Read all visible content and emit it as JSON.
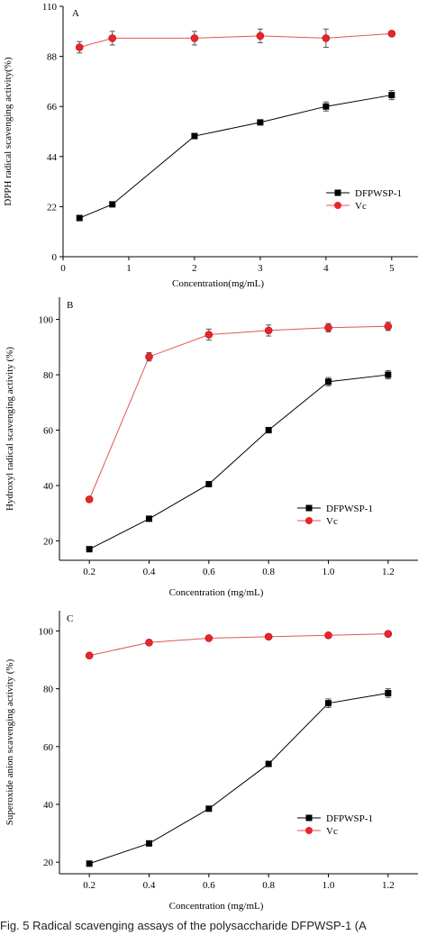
{
  "caption": "Fig. 5   Radical scavenging assays of the polysaccharide DFPWSP-1 (A",
  "colors": {
    "dfpwsp": "#000000",
    "vc": "#e8252b",
    "vc_line": "#e05555"
  },
  "chart_data": [
    {
      "type": "line",
      "panel": "A",
      "xlabel": "Concentration(mg/mL)",
      "ylabel": "DPPH radical scavenging activity(%)",
      "xlim": [
        0,
        5.4
      ],
      "ylim": [
        0,
        110
      ],
      "xticks": [
        0,
        1,
        2,
        3,
        4,
        5
      ],
      "yticks": [
        0,
        22,
        44,
        66,
        88,
        110
      ],
      "x": [
        0.25,
        0.75,
        2,
        3,
        4,
        5
      ],
      "series": [
        {
          "name": "DFPWSP-1",
          "marker": "square",
          "values": [
            17,
            23,
            53,
            59,
            66,
            71
          ],
          "errors": [
            0,
            0,
            0,
            0,
            2,
            2
          ]
        },
        {
          "name": "Vc",
          "marker": "circle",
          "values": [
            92,
            96,
            96,
            97,
            96,
            98
          ],
          "errors": [
            2.5,
            3,
            3,
            3,
            4,
            0
          ]
        }
      ],
      "legend_position": "center-right"
    },
    {
      "type": "line",
      "panel": "B",
      "xlabel": "Concentration (mg/mL)",
      "ylabel": "Hydroxyl radical scavenging activity (%)",
      "xlim": [
        0.1,
        1.3
      ],
      "ylim": [
        13,
        108
      ],
      "xticks": [
        0.2,
        0.4,
        0.6,
        0.8,
        1.0,
        1.2
      ],
      "xticklabels": [
        "0.2",
        "0.4",
        "0.6",
        "0.8",
        "1.0",
        "1.2"
      ],
      "yticks": [
        20,
        40,
        60,
        80,
        100
      ],
      "x": [
        0.2,
        0.4,
        0.6,
        0.8,
        1.0,
        1.2
      ],
      "series": [
        {
          "name": "DFPWSP-1",
          "marker": "square",
          "values": [
            17,
            28,
            40.5,
            60,
            77.5,
            80
          ],
          "errors": [
            0,
            0,
            0,
            1,
            1.5,
            1.5
          ]
        },
        {
          "name": "Vc",
          "marker": "circle",
          "values": [
            35,
            86.5,
            94.5,
            96,
            97,
            97.5
          ],
          "errors": [
            0,
            1.5,
            2,
            2,
            1.5,
            1.5
          ]
        }
      ],
      "legend_position": "bottom-right"
    },
    {
      "type": "line",
      "panel": "C",
      "xlabel": "Concentration (mg/mL)",
      "ylabel": "Superoxide anion scavenging activity (%)",
      "xlim": [
        0.1,
        1.3
      ],
      "ylim": [
        16,
        107
      ],
      "xticks": [
        0.2,
        0.4,
        0.6,
        0.8,
        1.0,
        1.2
      ],
      "xticklabels": [
        "0.2",
        "0.4",
        "0.6",
        "0.8",
        "1.0",
        "1.2"
      ],
      "yticks": [
        20,
        40,
        60,
        80,
        100
      ],
      "x": [
        0.2,
        0.4,
        0.6,
        0.8,
        1.0,
        1.2
      ],
      "series": [
        {
          "name": "DFPWSP-1",
          "marker": "square",
          "values": [
            19.5,
            26.5,
            38.5,
            54,
            75,
            78.5
          ],
          "errors": [
            0,
            0,
            0,
            0,
            1.5,
            1.5
          ]
        },
        {
          "name": "Vc",
          "marker": "circle",
          "values": [
            91.5,
            96,
            97.5,
            98,
            98.5,
            99
          ],
          "errors": [
            0,
            0,
            0,
            0,
            0,
            0
          ]
        }
      ],
      "legend_position": "bottom-right"
    }
  ]
}
